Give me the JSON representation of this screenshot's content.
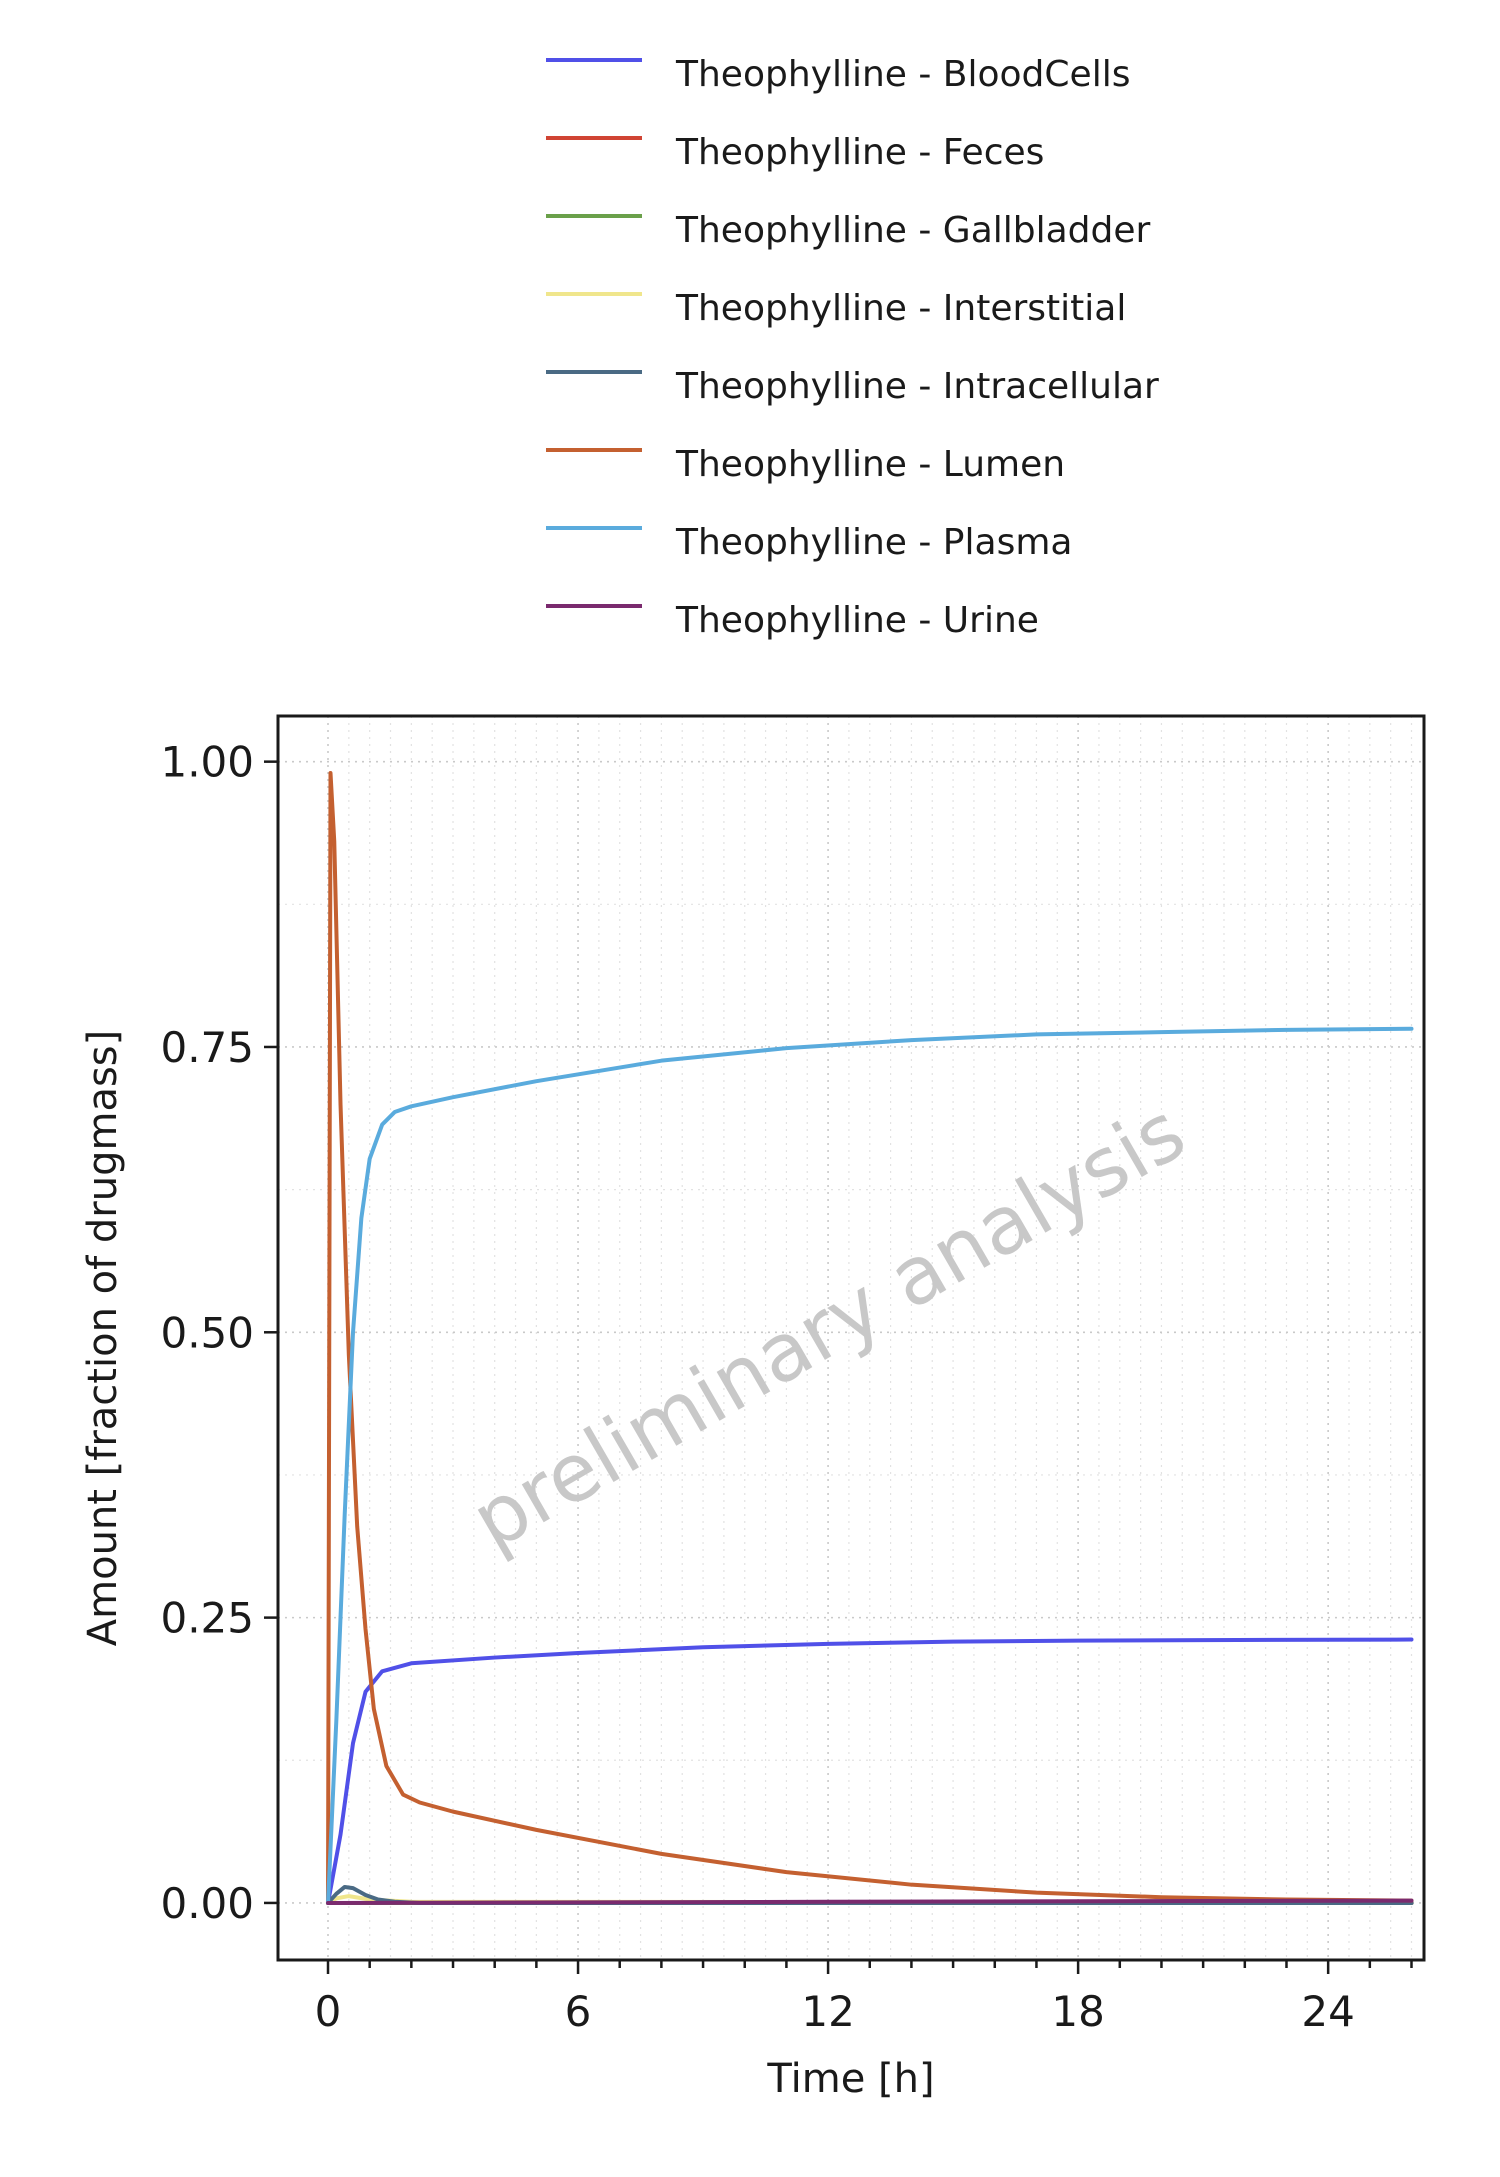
{
  "chart_data": {
    "type": "line",
    "xlabel": "Time [h]",
    "ylabel": "Amount [fraction of drugmass]",
    "xlim": [
      -1.2,
      26.3
    ],
    "ylim": [
      -0.05,
      1.04
    ],
    "x_ticks": [
      0,
      6,
      12,
      18,
      24
    ],
    "y_ticks": [
      0.0,
      0.25,
      0.5,
      0.75,
      1.0
    ],
    "y_tick_labels": [
      "0.00",
      "0.25",
      "0.50",
      "0.75",
      "1.00"
    ],
    "grid": true,
    "legend_position": "top",
    "watermark": "preliminary analysis",
    "series": [
      {
        "name": "Theophylline - BloodCells",
        "color": "#5050e8",
        "points": [
          [
            0,
            0
          ],
          [
            0.3,
            0.06
          ],
          [
            0.6,
            0.14
          ],
          [
            0.9,
            0.185
          ],
          [
            1.3,
            0.203
          ],
          [
            2,
            0.21
          ],
          [
            4,
            0.215
          ],
          [
            6,
            0.219
          ],
          [
            9,
            0.224
          ],
          [
            12,
            0.227
          ],
          [
            15,
            0.229
          ],
          [
            18,
            0.2298
          ],
          [
            21,
            0.2303
          ],
          [
            24,
            0.2306
          ],
          [
            26,
            0.2308
          ]
        ]
      },
      {
        "name": "Theophylline - Feces",
        "color": "#d04433",
        "points": [
          [
            0,
            0
          ],
          [
            26,
            0
          ]
        ]
      },
      {
        "name": "Theophylline - Gallbladder",
        "color": "#6aa04a",
        "points": [
          [
            0,
            0
          ],
          [
            26,
            0
          ]
        ]
      },
      {
        "name": "Theophylline - Interstitial",
        "color": "#f0e68c",
        "points": [
          [
            0,
            0
          ],
          [
            0.2,
            0.004
          ],
          [
            0.5,
            0.006
          ],
          [
            1,
            0.003
          ],
          [
            2,
            0.001
          ],
          [
            26,
            0.0005
          ]
        ]
      },
      {
        "name": "Theophylline - Intracellular",
        "color": "#4a6a84",
        "points": [
          [
            0,
            0
          ],
          [
            0.2,
            0.008
          ],
          [
            0.4,
            0.014
          ],
          [
            0.6,
            0.013
          ],
          [
            0.9,
            0.007
          ],
          [
            1.2,
            0.003
          ],
          [
            1.6,
            0.001
          ],
          [
            2.2,
            0
          ],
          [
            26,
            0
          ]
        ]
      },
      {
        "name": "Theophylline - Lumen",
        "color": "#c46030",
        "points": [
          [
            0,
            0
          ],
          [
            0.06,
            0.99
          ],
          [
            0.15,
            0.93
          ],
          [
            0.3,
            0.7
          ],
          [
            0.5,
            0.48
          ],
          [
            0.7,
            0.33
          ],
          [
            0.9,
            0.24
          ],
          [
            1.1,
            0.17
          ],
          [
            1.4,
            0.12
          ],
          [
            1.8,
            0.095
          ],
          [
            2.2,
            0.088
          ],
          [
            3,
            0.08
          ],
          [
            5,
            0.064
          ],
          [
            8,
            0.043
          ],
          [
            11,
            0.027
          ],
          [
            14,
            0.016
          ],
          [
            17,
            0.009
          ],
          [
            20,
            0.005
          ],
          [
            23,
            0.003
          ],
          [
            26,
            0.002
          ]
        ]
      },
      {
        "name": "Theophylline - Plasma",
        "color": "#5aabdd",
        "points": [
          [
            0,
            0
          ],
          [
            0.2,
            0.16
          ],
          [
            0.4,
            0.34
          ],
          [
            0.6,
            0.5
          ],
          [
            0.8,
            0.6
          ],
          [
            1.0,
            0.652
          ],
          [
            1.3,
            0.682
          ],
          [
            1.6,
            0.693
          ],
          [
            2,
            0.698
          ],
          [
            3,
            0.706
          ],
          [
            5,
            0.72
          ],
          [
            8,
            0.738
          ],
          [
            11,
            0.749
          ],
          [
            14,
            0.756
          ],
          [
            17,
            0.761
          ],
          [
            20,
            0.763
          ],
          [
            23,
            0.765
          ],
          [
            26,
            0.766
          ]
        ]
      },
      {
        "name": "Theophylline - Urine",
        "color": "#7a2a6e",
        "points": [
          [
            0,
            0
          ],
          [
            6,
            0.0005
          ],
          [
            12,
            0.001
          ],
          [
            18,
            0.0015
          ],
          [
            26,
            0.002
          ]
        ]
      }
    ]
  }
}
